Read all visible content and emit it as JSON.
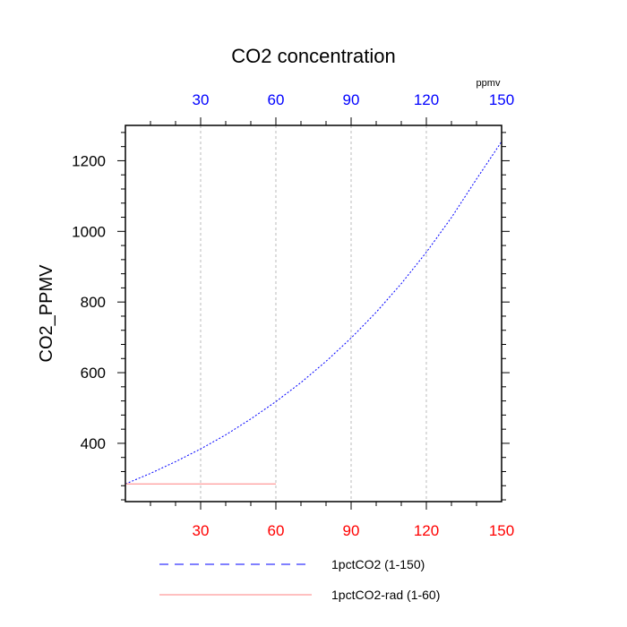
{
  "chart_data": {
    "type": "line",
    "title": "CO2 concentration",
    "ylabel": "CO2_PPMV",
    "top_axis_unit": "ppmv",
    "xlim": [
      0,
      150
    ],
    "ylim": [
      235,
      1300
    ],
    "x_ticks": [
      30,
      60,
      90,
      120,
      150
    ],
    "x_tick_labels": [
      "30",
      "60",
      "90",
      "120",
      "150"
    ],
    "y_ticks": [
      400,
      600,
      800,
      1000,
      1200
    ],
    "y_tick_labels": [
      "400",
      "600",
      "800",
      "1000",
      "1200"
    ],
    "y_minor_step": 40,
    "x_minor_step": 10,
    "vertical_grid": true,
    "top_axis_color": "#0000ff",
    "bottom_axis_color": "#ff0000",
    "series": [
      {
        "name": "1pctCO2 (1-150)",
        "color": "#0000ff",
        "style": "dashed",
        "x": [
          0,
          10,
          20,
          30,
          40,
          50,
          60,
          70,
          80,
          90,
          100,
          110,
          120,
          130,
          140,
          150
        ],
        "y": [
          285,
          315,
          348,
          384,
          424,
          469,
          518,
          572,
          632,
          698,
          771,
          852,
          941,
          1039,
          1148,
          1254
        ]
      },
      {
        "name": "1pctCO2-rad (1-60)",
        "color": "#ff8080",
        "style": "solid",
        "x": [
          0,
          60
        ],
        "y": [
          285,
          285
        ]
      }
    ],
    "legend_position": "bottom"
  }
}
